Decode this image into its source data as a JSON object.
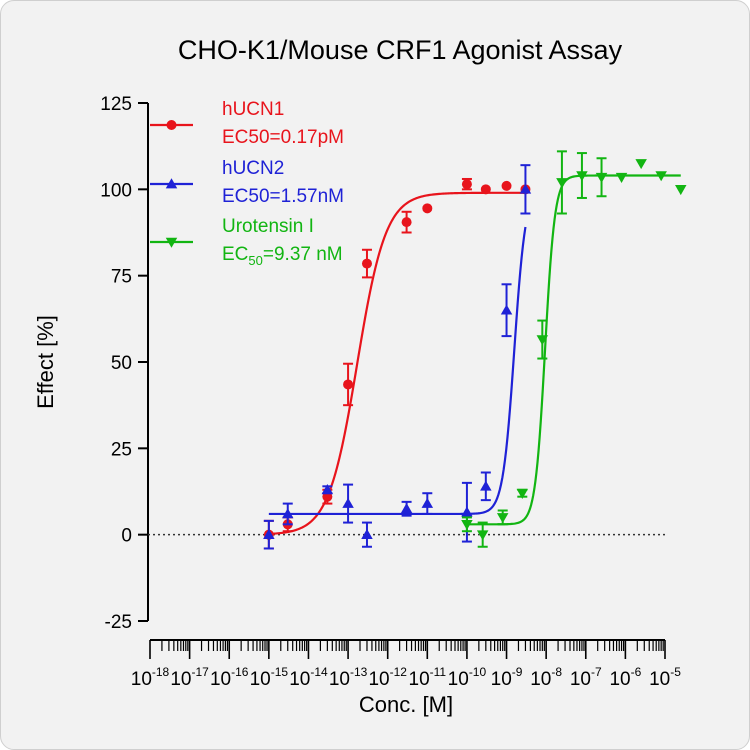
{
  "chart_data": {
    "type": "scatter",
    "title": "CHO-K1/Mouse CRF1 Agonist Assay",
    "xlabel": "Conc. [M]",
    "ylabel": "Effect  [%]",
    "x_scale": "log",
    "xlim": [
      1e-18,
      1e-05
    ],
    "ylim": [
      -25,
      125
    ],
    "y_ticks": [
      -25,
      0,
      25,
      50,
      75,
      100,
      125
    ],
    "x_tick_exponents": [
      -18,
      -17,
      -16,
      -15,
      -14,
      -13,
      -12,
      -11,
      -10,
      -9,
      -8,
      -7,
      -6,
      -5
    ],
    "x_tick_base": "10",
    "zero_line": "dotted",
    "legend_position": "top-left",
    "series": [
      {
        "name": "hUCN1",
        "label_line1": "hUCN1",
        "label_line2": "EC50=0.17pM",
        "color": "#e8141c",
        "marker": "circle",
        "ec50_M": 1.7e-13,
        "curve_bottom": 0,
        "curve_top": 99,
        "hill": 1.2,
        "points": [
          {
            "x": 1e-15,
            "y": 0,
            "err": 4
          },
          {
            "x": 3e-15,
            "y": 3,
            "err": 2
          },
          {
            "x": 3e-14,
            "y": 11,
            "err": 2
          },
          {
            "x": 1e-13,
            "y": 43.5,
            "err": 6
          },
          {
            "x": 3e-13,
            "y": 78.5,
            "err": 4
          },
          {
            "x": 3e-12,
            "y": 90.5,
            "err": 3
          },
          {
            "x": 1e-11,
            "y": 94.5,
            "err": 0
          },
          {
            "x": 1e-10,
            "y": 101.5,
            "err": 1.5
          },
          {
            "x": 3e-10,
            "y": 100,
            "err": 0
          },
          {
            "x": 1e-09,
            "y": 101,
            "err": 0
          },
          {
            "x": 3e-09,
            "y": 100,
            "err": 0
          }
        ]
      },
      {
        "name": "hUCN2",
        "label_line1": "hUCN2",
        "label_line2": "EC50=1.57nM",
        "color": "#1f22d6",
        "marker": "triangle-up",
        "ec50_M": 1.57e-09,
        "curve_bottom": 6,
        "curve_top": 101,
        "hill": 3,
        "points": [
          {
            "x": 1e-15,
            "y": 0,
            "err": 4
          },
          {
            "x": 3e-15,
            "y": 6,
            "err": 3
          },
          {
            "x": 3e-14,
            "y": 13,
            "err": 1
          },
          {
            "x": 1e-13,
            "y": 9,
            "err": 5.5
          },
          {
            "x": 3e-13,
            "y": 0,
            "err": 3.5
          },
          {
            "x": 3e-12,
            "y": 7.5,
            "err": 2
          },
          {
            "x": 1e-11,
            "y": 9,
            "err": 3
          },
          {
            "x": 1e-10,
            "y": 6.5,
            "err": 8.5
          },
          {
            "x": 3e-10,
            "y": 14,
            "err": 4
          },
          {
            "x": 1e-09,
            "y": 65,
            "err": 7.5
          },
          {
            "x": 3e-09,
            "y": 100,
            "err": 7
          }
        ]
      },
      {
        "name": "Urotensin I",
        "label_line1": "Urotensin I",
        "label_line2": "EC50=9.37 nM",
        "label_prefix": "EC",
        "label_sub": "50",
        "label_suffix": "=9.37 nM",
        "color": "#12b512",
        "marker": "triangle-down",
        "ec50_M": 9.37e-09,
        "curve_bottom": 3,
        "curve_top": 104,
        "hill": 3.5,
        "points": [
          {
            "x": 1e-10,
            "y": 3,
            "err": 2
          },
          {
            "x": 2.5e-10,
            "y": 0,
            "err": 3.5
          },
          {
            "x": 8e-10,
            "y": 5,
            "err": 2
          },
          {
            "x": 2.5e-09,
            "y": 12,
            "err": 1
          },
          {
            "x": 8e-09,
            "y": 56.5,
            "err": 5.5
          },
          {
            "x": 2.5e-08,
            "y": 102,
            "err": 9
          },
          {
            "x": 8e-08,
            "y": 104,
            "err": 6.5
          },
          {
            "x": 2.5e-07,
            "y": 103.5,
            "err": 5.5
          },
          {
            "x": 8e-07,
            "y": 103.5,
            "err": 0
          },
          {
            "x": 2.5e-06,
            "y": 107.5,
            "err": 0
          },
          {
            "x": 8e-06,
            "y": 104,
            "err": 0
          },
          {
            "x": 2.5e-05,
            "y": 100,
            "err": 0
          }
        ]
      }
    ]
  }
}
